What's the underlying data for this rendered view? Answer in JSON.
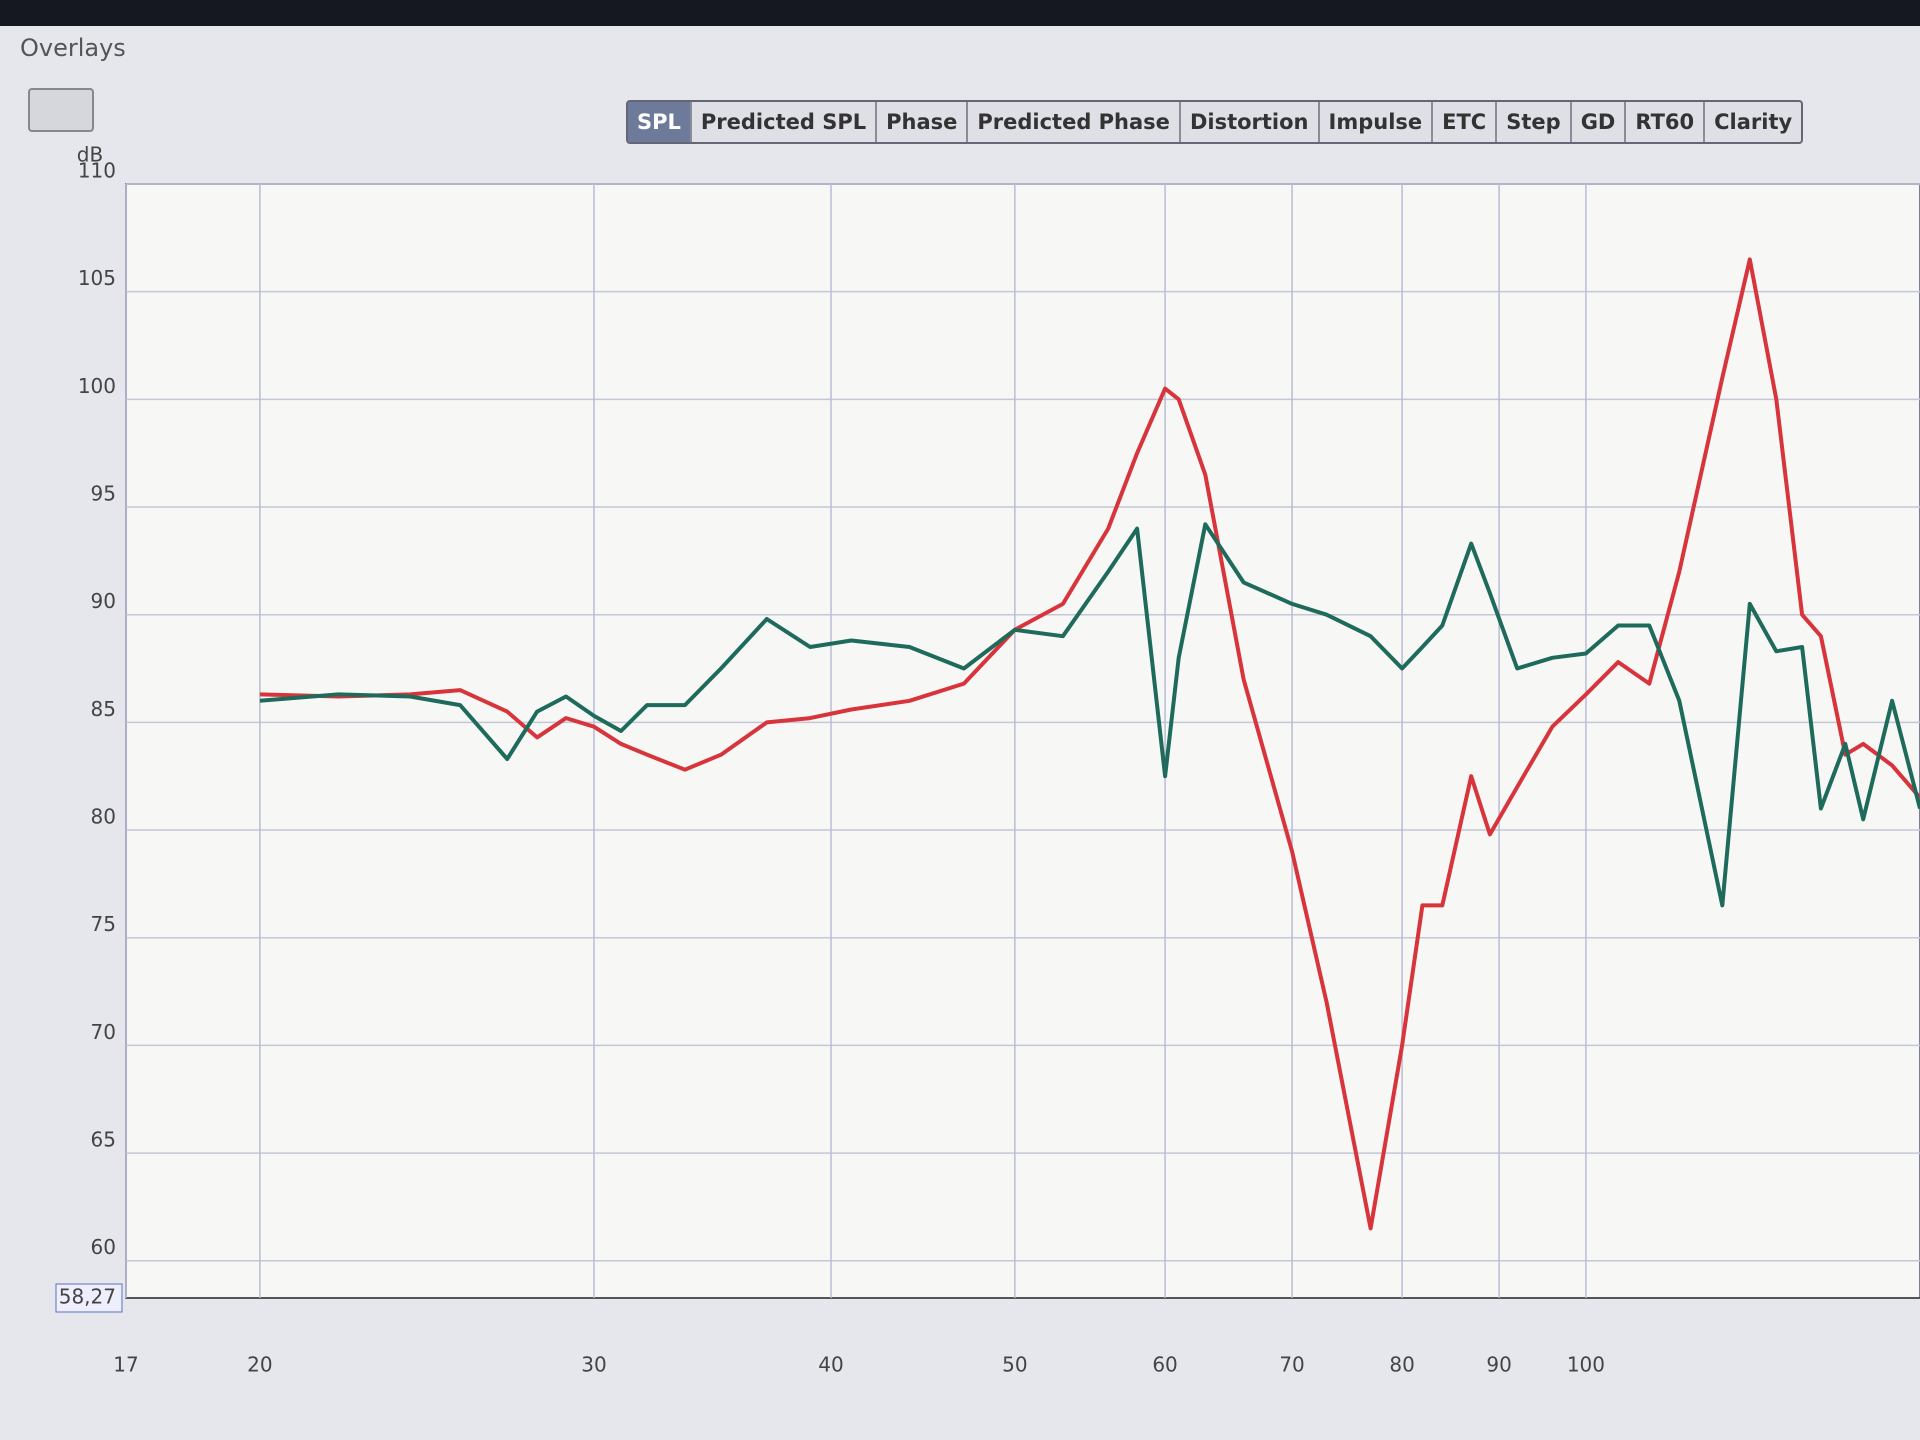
{
  "window": {
    "title": "Overlays"
  },
  "tabs": [
    "SPL",
    "Predicted SPL",
    "Phase",
    "Predicted Phase",
    "Distortion",
    "Impulse",
    "ETC",
    "Step",
    "GD",
    "RT60",
    "Clarity"
  ],
  "chart_data": {
    "type": "line",
    "y_label": "dB",
    "xscale": "log",
    "grid": true,
    "xlim": [
      17,
      150
    ],
    "xticks": [
      17,
      20,
      30,
      40,
      50,
      60,
      70,
      80,
      90,
      100
    ],
    "ylim": [
      58.27,
      110
    ],
    "yticks": [
      {
        "value": 58.27,
        "label": "58,27"
      },
      60,
      65,
      70,
      75,
      80,
      85,
      90,
      95,
      100,
      105,
      110
    ],
    "x": [
      20,
      22,
      24,
      25.5,
      27,
      28,
      29,
      30,
      31,
      32,
      33.5,
      35,
      37,
      39,
      41,
      44,
      47,
      50,
      53,
      56,
      58,
      60,
      61,
      63,
      66,
      70,
      73,
      77,
      80,
      82,
      84,
      87,
      89,
      92,
      96,
      100,
      104,
      108,
      112,
      118,
      122,
      126,
      130,
      133,
      137,
      140,
      145,
      150
    ],
    "series": [
      {
        "color": "#d8343c",
        "values": [
          86.3,
          86.2,
          86.3,
          86.5,
          85.5,
          84.3,
          85.2,
          84.8,
          84,
          83.5,
          82.8,
          83.5,
          85,
          85.2,
          85.6,
          86,
          86.8,
          89.3,
          90.5,
          94,
          97.5,
          100.5,
          100,
          96.5,
          87,
          79,
          72,
          61.5,
          70,
          76.5,
          76.5,
          82.5,
          79.8,
          82,
          84.8,
          86.3,
          87.8,
          86.8,
          92,
          101,
          106.5,
          100,
          90,
          89,
          83.5,
          84,
          83,
          81.5
        ]
      },
      {
        "color": "#1e6b5c",
        "values": [
          86,
          86.3,
          86.2,
          85.8,
          83.3,
          85.5,
          86.2,
          85.3,
          84.6,
          85.8,
          85.8,
          87.5,
          89.8,
          88.5,
          88.8,
          88.5,
          87.5,
          89.3,
          89,
          92,
          94,
          82.5,
          88,
          94.2,
          91.5,
          90.5,
          90,
          89,
          87.5,
          88.5,
          89.5,
          93.3,
          91,
          87.5,
          88,
          88.2,
          89.5,
          89.5,
          86,
          76.5,
          90.5,
          88.3,
          88.5,
          81,
          84,
          80.5,
          86,
          81
        ]
      }
    ]
  }
}
